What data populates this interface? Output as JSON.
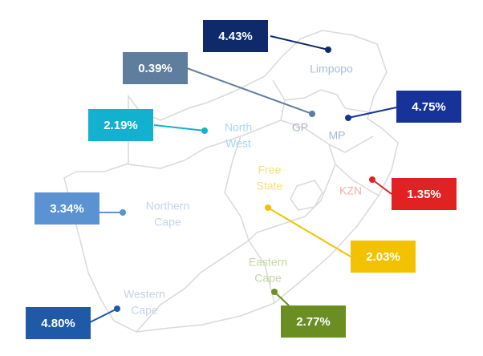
{
  "regions": [
    {
      "name": [
        "Limpopo"
      ],
      "value": "4.43%"
    },
    {
      "name": [
        "GP"
      ],
      "value": "0.39%"
    },
    {
      "name": [
        "MP"
      ],
      "value": "4.75%"
    },
    {
      "name": [
        "North",
        "West"
      ],
      "value": "2.19%"
    },
    {
      "name": [
        "Free",
        "State"
      ],
      "value": "2.03%"
    },
    {
      "name": [
        "KZN"
      ],
      "value": "1.35%"
    },
    {
      "name": [
        "Northern",
        "Cape"
      ],
      "value": "3.34%"
    },
    {
      "name": [
        "Eastern",
        "Cape"
      ],
      "value": "2.77%"
    },
    {
      "name": [
        "Western",
        "Cape"
      ],
      "value": "4.80%"
    }
  ]
}
